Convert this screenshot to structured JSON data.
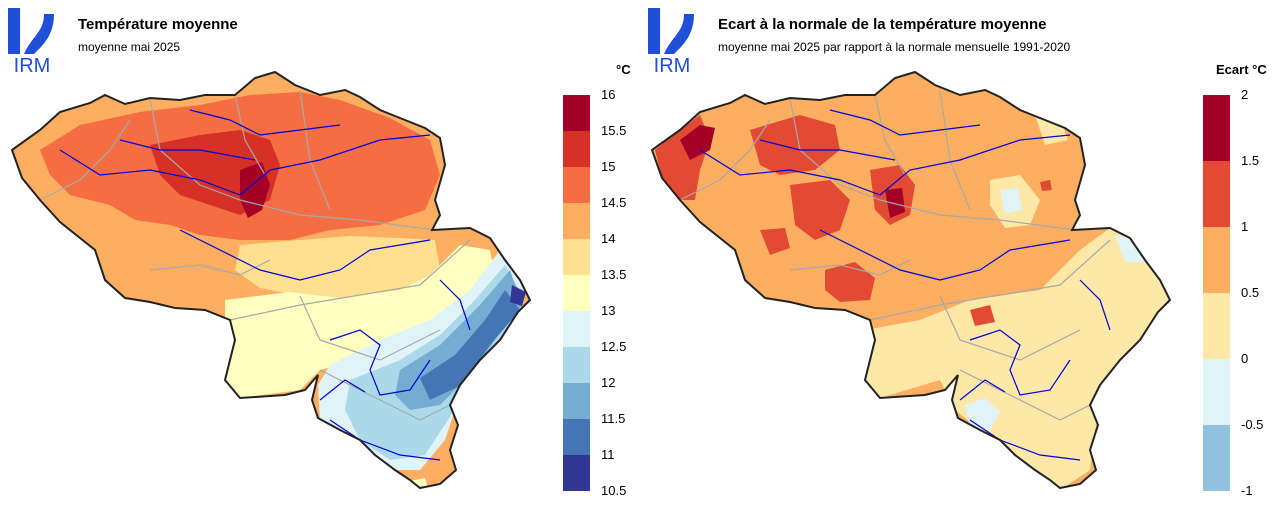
{
  "logo_text": "IRM",
  "panels": [
    {
      "title": "Température moyenne",
      "subtitle": "moyenne mai 2025",
      "unit": "°C",
      "legend_ticks": [
        "16",
        "15.5",
        "15",
        "14.5",
        "14",
        "13.5",
        "13",
        "12.5",
        "12",
        "11.5",
        "11",
        "10.5"
      ],
      "legend_colors": [
        "#a50026",
        "#d73027",
        "#f46d43",
        "#fdae61",
        "#fee090",
        "#ffffbf",
        "#e0f3f8",
        "#abd9e9",
        "#74add1",
        "#4575b4",
        "#313695"
      ]
    },
    {
      "title": "Ecart à la normale de la température moyenne",
      "subtitle": "moyenne mai 2025 par rapport à la normale mensuelle 1991-2020",
      "unit": "Ecart °C",
      "legend_ticks": [
        "2",
        "1.5",
        "1",
        "0.5",
        "0",
        "-0.5",
        "-1"
      ],
      "legend_colors": [
        "#a50026",
        "#e34a33",
        "#fdae61",
        "#fee8a8",
        "#e0f3f8",
        "#91c3de"
      ]
    }
  ],
  "colors": {
    "logo_blue": "#1f4fd6",
    "rivers": "#0000dd",
    "province_borders": "#a8a8a8",
    "country_border": "#222222"
  }
}
